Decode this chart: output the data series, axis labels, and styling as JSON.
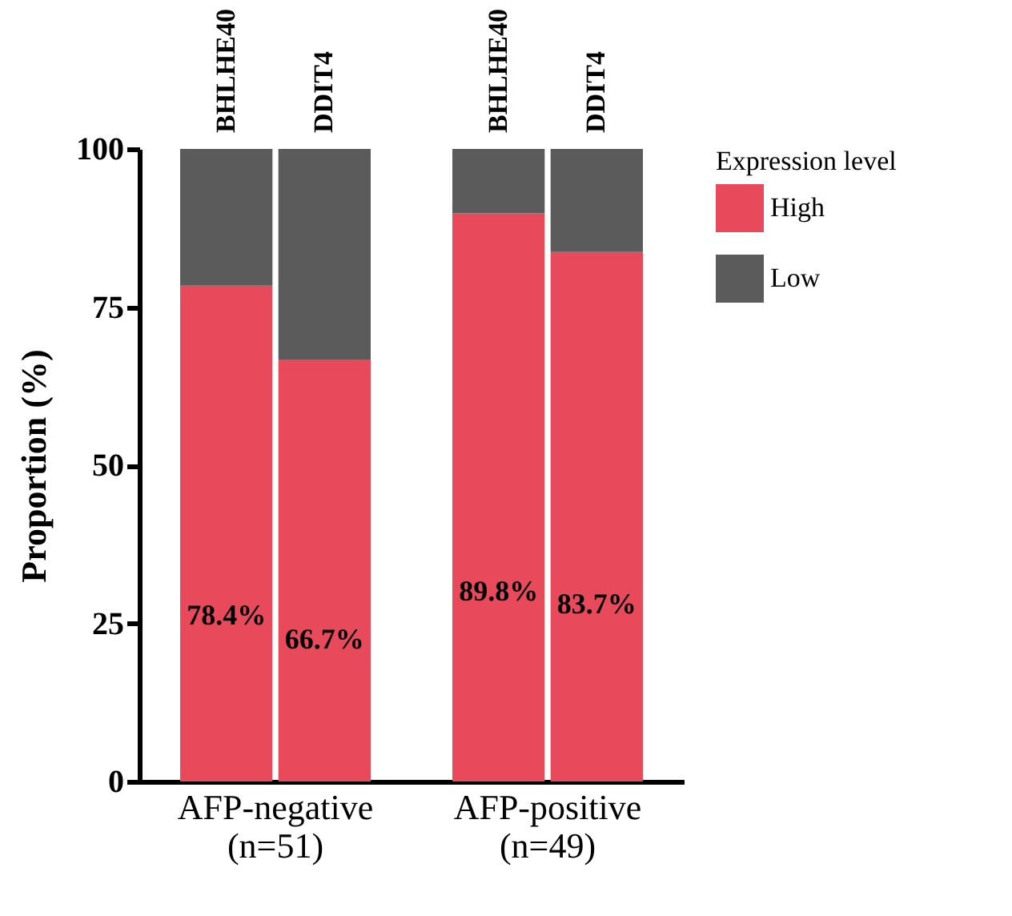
{
  "chart_data": {
    "type": "bar",
    "stacked": true,
    "ylabel": "Proportion (%)",
    "legend_title": "Expression level",
    "legend": "right",
    "categories": [
      "BHLHE40",
      "DDIT4",
      "BHLHE40",
      "DDIT4"
    ],
    "annotations": [
      "AFP-negative\n(n=51)",
      "AFP-positive\n(n=49)"
    ],
    "series": [
      {
        "name": "High",
        "color": "#e94a5b",
        "values": [
          78.4,
          66.7,
          89.8,
          83.7
        ],
        "value_labels": [
          "78.4%",
          "66.7%",
          "89.8%",
          "83.7%"
        ]
      },
      {
        "name": "Low",
        "color": "#5b5b5b",
        "values": [
          21.6,
          33.3,
          10.2,
          16.3
        ]
      }
    ],
    "ylim": [
      0,
      100
    ],
    "yticks": [
      0,
      25,
      50,
      75,
      100
    ],
    "grid": false
  }
}
